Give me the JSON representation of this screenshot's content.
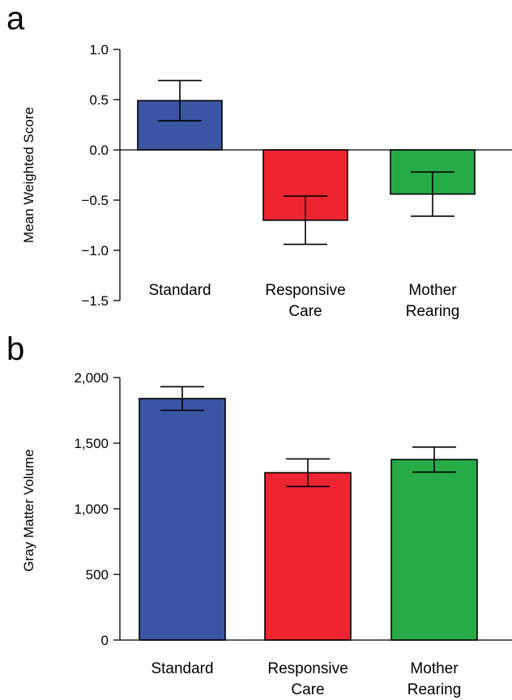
{
  "chart_data": [
    {
      "panel_label": "a",
      "type": "bar",
      "categories": [
        [
          "Standard"
        ],
        [
          "Responsive",
          "Care"
        ],
        [
          "Mother",
          "Rearing"
        ]
      ],
      "values": [
        0.49,
        -0.7,
        -0.44
      ],
      "error": [
        0.2,
        0.24,
        0.22
      ],
      "colors": [
        "#3a55a4",
        "#ee2431",
        "#27ab48"
      ],
      "ylabel": "Mean Weighted Score",
      "xlabel": "",
      "ylim": [
        -1.5,
        1.0
      ],
      "yticks": [
        1.0,
        0.5,
        0.0,
        -0.5,
        -1.0,
        -1.5
      ],
      "ytick_labels": [
        "1.0",
        "0.5",
        "0.0",
        "−0.5",
        "−1.0",
        "−1.5"
      ],
      "grid": false,
      "legend": "none"
    },
    {
      "panel_label": "b",
      "type": "bar",
      "categories": [
        [
          "Standard"
        ],
        [
          "Responsive",
          "Care"
        ],
        [
          "Mother",
          "Rearing"
        ]
      ],
      "values": [
        1840,
        1275,
        1375
      ],
      "error": [
        90,
        105,
        95
      ],
      "colors": [
        "#3a55a4",
        "#ee2431",
        "#27ab48"
      ],
      "ylabel": "Gray Matter Volume",
      "xlabel": "",
      "ylim": [
        0,
        2000
      ],
      "yticks": [
        0,
        500,
        1000,
        1500,
        2000
      ],
      "ytick_labels": [
        "0",
        "500",
        "1,000",
        "1,500",
        "2,000"
      ],
      "grid": false,
      "legend": "none"
    }
  ]
}
